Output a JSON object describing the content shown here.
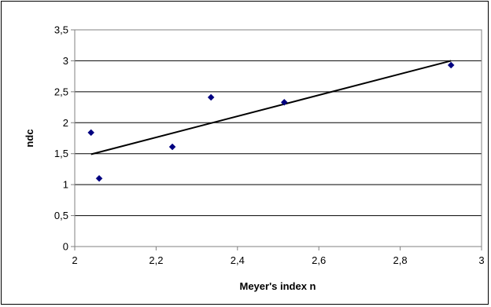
{
  "chart_data": {
    "type": "scatter",
    "xlabel": "Meyer's index n",
    "ylabel": "ndc",
    "xlim": [
      2,
      3
    ],
    "ylim": [
      0,
      3.5
    ],
    "x_ticks": [
      "2",
      "2,2",
      "2,4",
      "2,6",
      "2,8",
      "3"
    ],
    "y_ticks": [
      "0",
      "0,5",
      "1",
      "1,5",
      "2",
      "2,5",
      "3",
      "3,5"
    ],
    "x_tick_values": [
      2,
      2.2,
      2.4,
      2.6,
      2.8,
      3
    ],
    "y_tick_values": [
      0,
      0.5,
      1,
      1.5,
      2,
      2.5,
      3,
      3.5
    ],
    "grid": "horizontal",
    "series": [
      {
        "points": [
          {
            "x": 2.04,
            "y": 1.84
          },
          {
            "x": 2.06,
            "y": 1.1
          },
          {
            "x": 2.24,
            "y": 1.61
          },
          {
            "x": 2.335,
            "y": 2.41
          },
          {
            "x": 2.515,
            "y": 2.33
          },
          {
            "x": 2.925,
            "y": 2.93
          }
        ],
        "marker": "diamond",
        "color": "#000080"
      }
    ],
    "trendline": {
      "x": [
        2.04,
        2.925
      ],
      "y": [
        1.49,
        3.0
      ],
      "color": "#000000"
    }
  }
}
